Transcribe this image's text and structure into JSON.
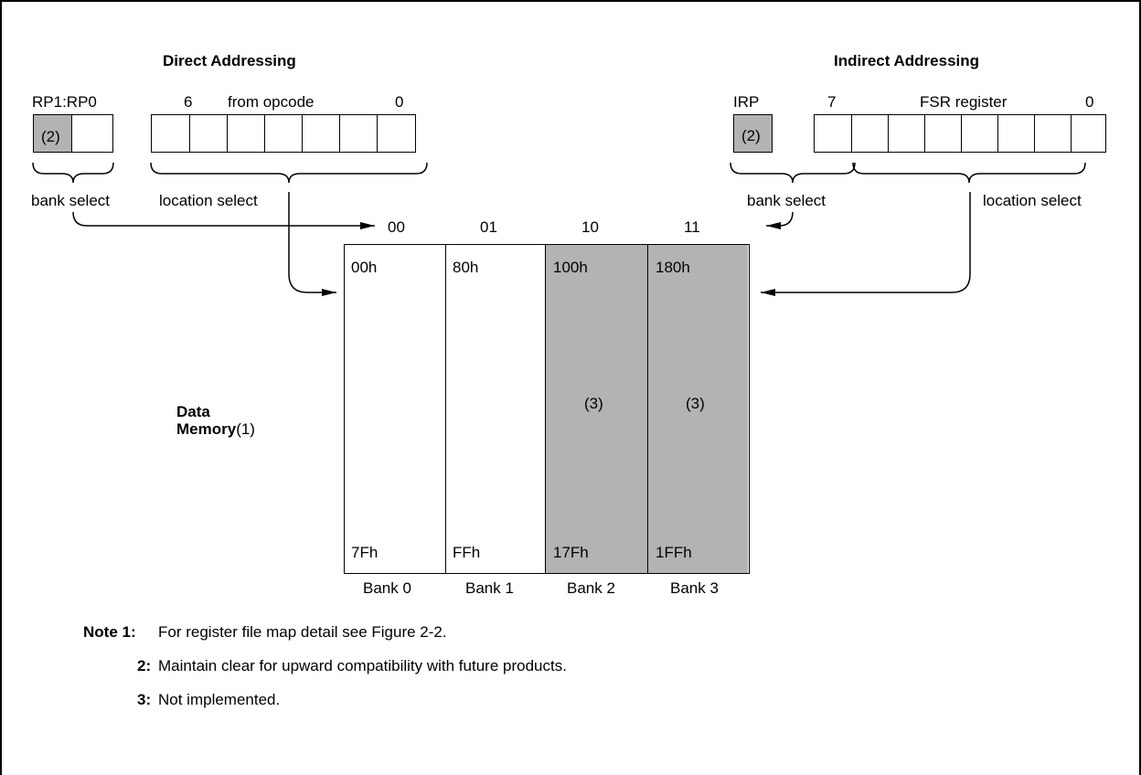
{
  "direct": {
    "title": "Direct Addressing",
    "rp_label": "RP1:RP0",
    "rp_note": "(2)",
    "bit_high": "6",
    "opcode_label": "from opcode",
    "bit_low": "0",
    "bank_select": "bank select",
    "location_select": "location select"
  },
  "indirect": {
    "title": "Indirect Addressing",
    "irp_label": "IRP",
    "irp_note": "(2)",
    "bit_high": "7",
    "fsr_label": "FSR register",
    "bit_low": "0",
    "bank_select": "bank select",
    "location_select": "location select"
  },
  "memory": {
    "label_line1": "Data",
    "label_line2": "Memory",
    "label_note": "(1)",
    "banks": [
      {
        "code": "00",
        "start": "00h",
        "end": "7Fh",
        "name": "Bank 0",
        "note": "",
        "shaded": false
      },
      {
        "code": "01",
        "start": "80h",
        "end": "FFh",
        "name": "Bank 1",
        "note": "",
        "shaded": false
      },
      {
        "code": "10",
        "start": "100h",
        "end": "17Fh",
        "name": "Bank 2",
        "note": "(3)",
        "shaded": true
      },
      {
        "code": "11",
        "start": "180h",
        "end": "1FFh",
        "name": "Bank 3",
        "note": "(3)",
        "shaded": true
      }
    ]
  },
  "notes": {
    "n1_label": "Note 1:",
    "n1_text": "For register file map detail see Figure 2-2.",
    "n2_label": "2:",
    "n2_text": "Maintain clear for upward compatibility with future products.",
    "n3_label": "3:",
    "n3_text": "Not implemented."
  },
  "colors": {
    "shade": "#b3b3b3",
    "line": "#000000"
  }
}
